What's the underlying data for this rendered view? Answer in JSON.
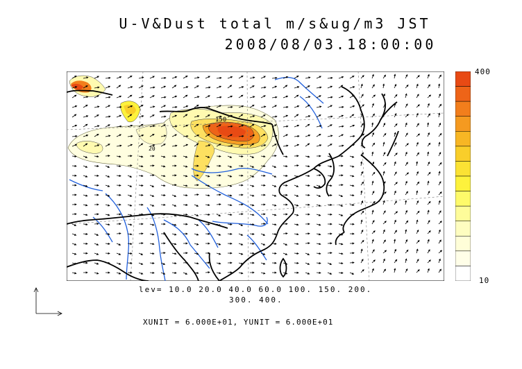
{
  "title": {
    "line1": "U-V&Dust total m/s&ug/m3 JST",
    "line2": "2008/08/03.18:00:00"
  },
  "colorbar": {
    "max_label": "400",
    "min_label": "10",
    "colors": [
      "#e84a14",
      "#ee6418",
      "#f27e1c",
      "#f59a20",
      "#f7b624",
      "#f9ce2a",
      "#fbe234",
      "#fdf23c",
      "#fefa6a",
      "#fefc9a",
      "#fefdc0",
      "#fffed8",
      "#fffee8",
      "#ffffff"
    ]
  },
  "levels": {
    "line1": "lev= 10.0 20.0 40.0 60.0 100. 150. 200.",
    "line2": "300. 400."
  },
  "units": "XUNIT = 6.000E+01, YUNIT = 6.000E+01",
  "contour_labels": [
    "150",
    "20"
  ],
  "colors": {
    "coast": "#000000",
    "river": "#1f5fdc",
    "grid": "#777777"
  }
}
